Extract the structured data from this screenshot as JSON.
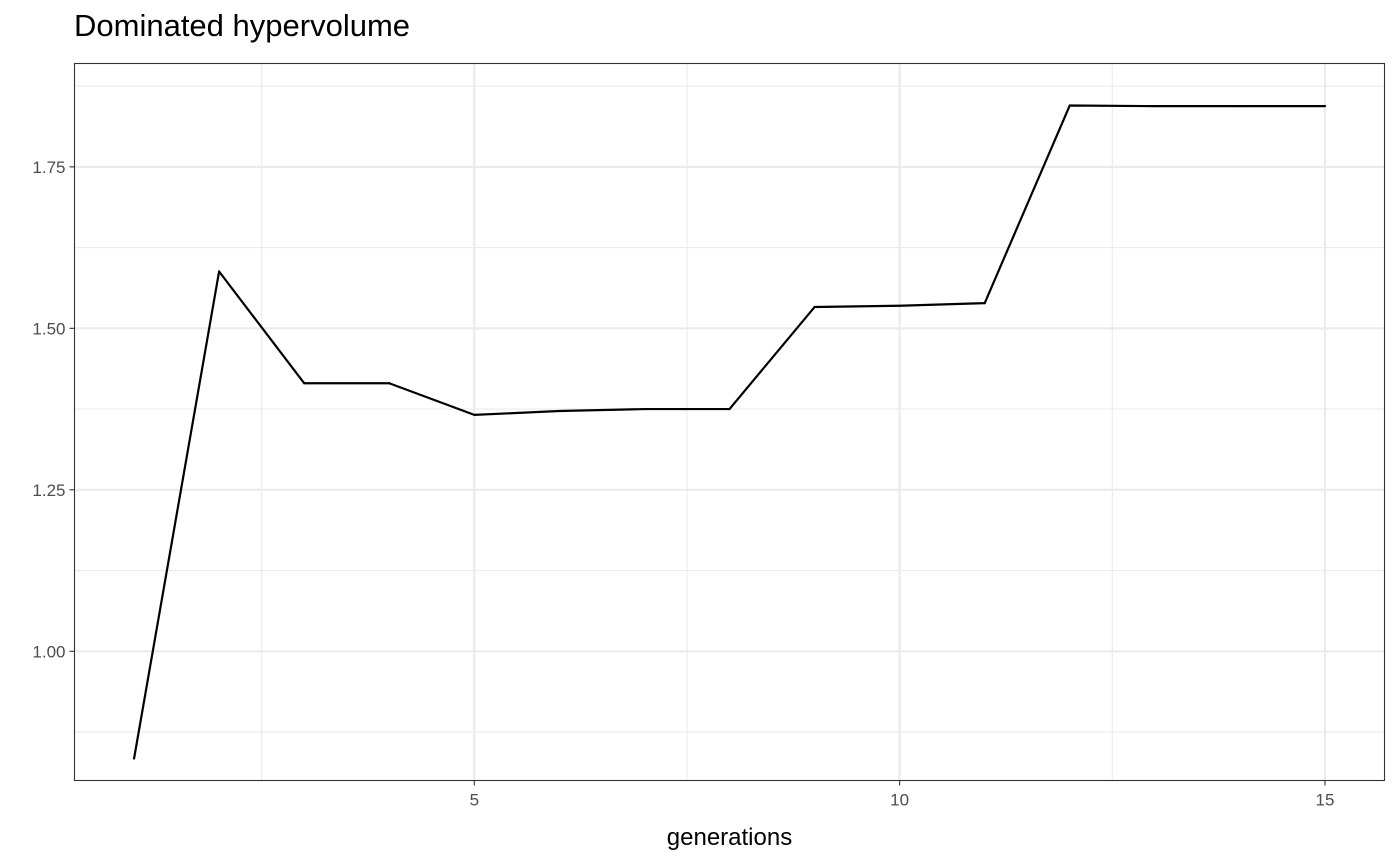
{
  "chart_data": {
    "type": "line",
    "title": "Dominated hypervolume",
    "xlabel": "generations",
    "ylabel": "",
    "x": [
      1,
      2,
      3,
      4,
      5,
      6,
      7,
      8,
      9,
      10,
      11,
      12,
      13,
      14,
      15
    ],
    "series": [
      {
        "values": [
          0.834,
          1.588,
          1.415,
          1.415,
          1.366,
          1.372,
          1.375,
          1.375,
          1.533,
          1.535,
          1.539,
          1.845,
          1.844,
          1.844,
          1.844
        ]
      }
    ],
    "xlim": [
      0.3,
      15.7
    ],
    "ylim": [
      0.8,
      1.91
    ],
    "x_ticks": [
      5,
      10,
      15
    ],
    "x_tick_labels": [
      "5",
      "10",
      "15"
    ],
    "y_ticks": [
      1.0,
      1.25,
      1.5,
      1.75
    ],
    "y_tick_labels": [
      "1.00",
      "1.25",
      "1.50",
      "1.75"
    ],
    "grid": true,
    "line_color": "#000000",
    "grid_color": "#ebebeb",
    "panel_border_color": "#333333"
  }
}
